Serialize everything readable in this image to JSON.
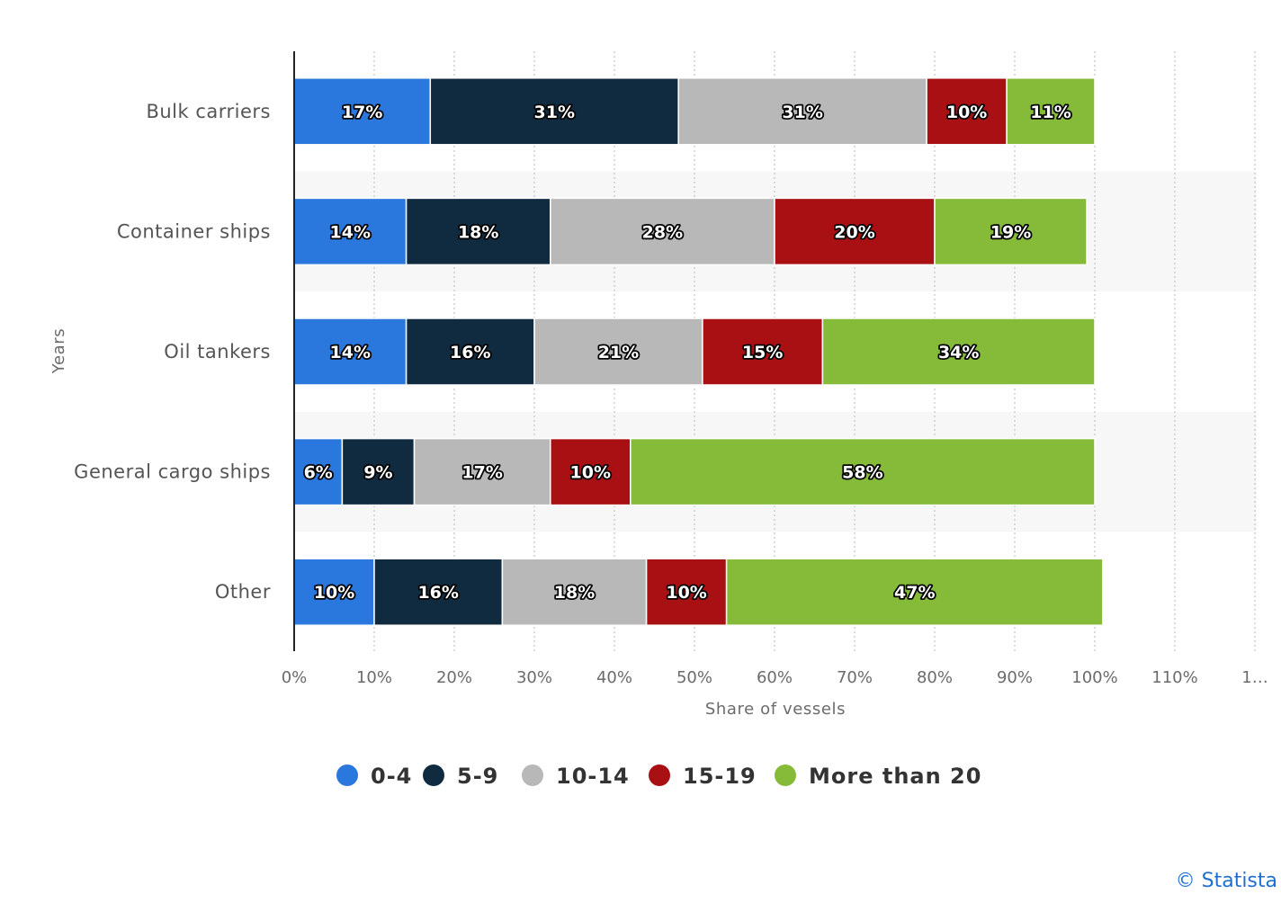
{
  "chart_data": {
    "type": "bar",
    "orientation": "horizontal",
    "stacked": true,
    "categories": [
      "Bulk carriers",
      "Container ships",
      "Oil tankers",
      "General cargo ships",
      "Other"
    ],
    "series": [
      {
        "name": "0-4",
        "color": "#2a78de",
        "values": [
          17,
          14,
          14,
          6,
          10
        ]
      },
      {
        "name": "5-9",
        "color": "#102a40",
        "values": [
          31,
          18,
          16,
          9,
          16
        ]
      },
      {
        "name": "10-14",
        "color": "#b8b8b8",
        "values": [
          31,
          28,
          21,
          17,
          18
        ]
      },
      {
        "name": "15-19",
        "color": "#a81013",
        "values": [
          10,
          20,
          15,
          10,
          10
        ]
      },
      {
        "name": "More than 20",
        "color": "#86bb3a",
        "values": [
          11,
          19,
          34,
          58,
          47
        ]
      }
    ],
    "xlabel": "Share of vessels",
    "ylabel": "Years",
    "xlim": [
      0,
      120
    ],
    "x_ticks": [
      "0%",
      "10%",
      "20%",
      "30%",
      "40%",
      "50%",
      "60%",
      "70%",
      "80%",
      "90%",
      "100%",
      "110%",
      "1…"
    ],
    "grid": true,
    "legend_position": "bottom"
  },
  "credit": "© Statista"
}
